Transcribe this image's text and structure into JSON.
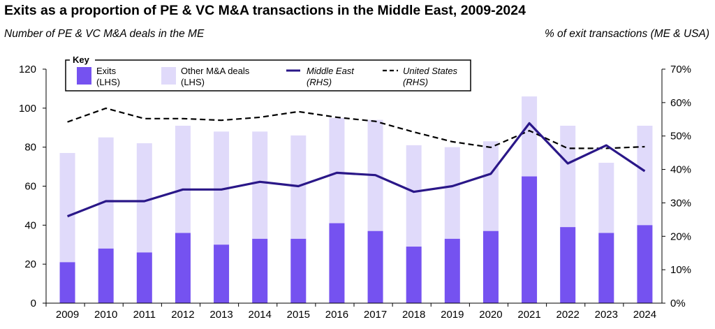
{
  "chart_data": {
    "type": "bar",
    "title": "Exits as a proportion of PE & VC M&A transactions in the Middle East, 2009-2024",
    "ylabel_left": "Number of PE & VC M&A deals in the ME",
    "ylabel_right": "% of exit transactions (ME & USA)",
    "categories": [
      "2009",
      "2010",
      "2011",
      "2012",
      "2013",
      "2014",
      "2015",
      "2016",
      "2017",
      "2018",
      "2019",
      "2020",
      "2021",
      "2022",
      "2023",
      "2024"
    ],
    "ylim_left": [
      0,
      120
    ],
    "yticks_left": [
      "0",
      "20",
      "40",
      "60",
      "80",
      "100",
      "120"
    ],
    "ylim_right": [
      0,
      70
    ],
    "yticks_right": [
      "0%",
      "10%",
      "20%",
      "30%",
      "40%",
      "50%",
      "60%",
      "70%"
    ],
    "series": [
      {
        "name": "Exits",
        "axis": "LHS",
        "kind": "stacked-bar",
        "color": "#7552f0",
        "values": [
          21,
          28,
          26,
          36,
          30,
          33,
          33,
          41,
          37,
          29,
          33,
          37,
          65,
          39,
          36,
          40
        ]
      },
      {
        "name": "Other M&A deals",
        "axis": "LHS",
        "kind": "stacked-bar",
        "color": "#e0dafa",
        "values": [
          56,
          57,
          56,
          55,
          58,
          55,
          53,
          54,
          57,
          52,
          47,
          46,
          41,
          52,
          36,
          51
        ]
      },
      {
        "name": "Middle East",
        "axis": "RHS",
        "kind": "line",
        "color": "#2a1788",
        "values": [
          26,
          30.5,
          30.5,
          34,
          34,
          36.3,
          35,
          39,
          38.3,
          33.3,
          35,
          38.7,
          53.8,
          41.8,
          47.2,
          39.5
        ]
      },
      {
        "name": "United States",
        "axis": "RHS",
        "kind": "dashed-line",
        "color": "#000000",
        "values": [
          54.2,
          58.3,
          55.2,
          55.2,
          54.7,
          55.6,
          57.3,
          55.6,
          54.4,
          51.2,
          48.3,
          46.6,
          51.6,
          46.3,
          46.3,
          46.8
        ]
      }
    ],
    "legend": {
      "title": "Key",
      "position": "top-left",
      "items": [
        {
          "label": "Exits",
          "sub": "(LHS)"
        },
        {
          "label": "Other M&A deals",
          "sub": "(LHS)"
        },
        {
          "label": "Middle East",
          "sub": "(RHS)"
        },
        {
          "label": "United States",
          "sub": "(RHS)"
        }
      ]
    }
  }
}
